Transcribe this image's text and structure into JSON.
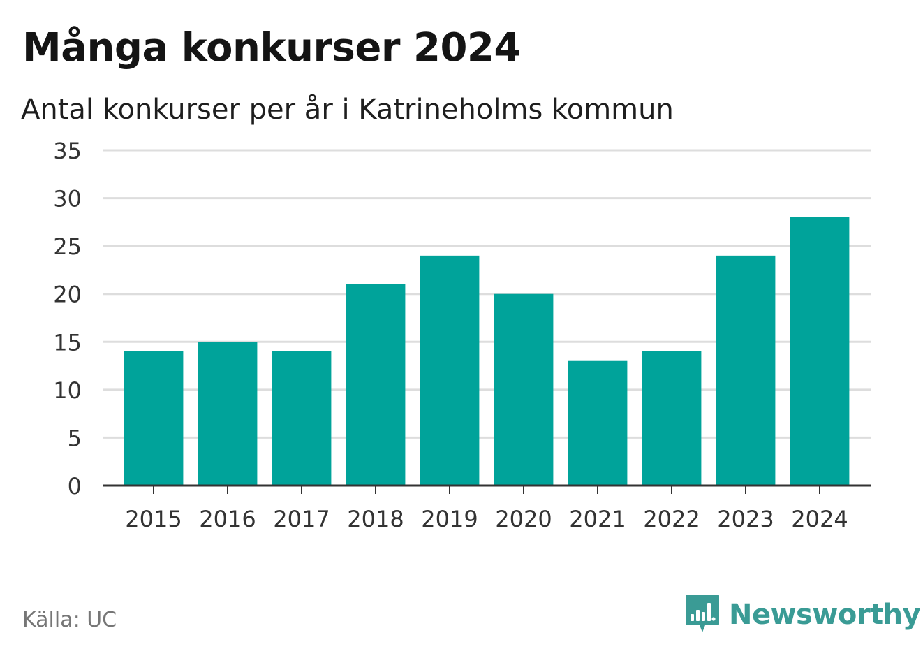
{
  "header": {
    "title": "Många konkurser 2024",
    "subtitle": "Antal konkurser per år i Katrineholms kommun"
  },
  "footer": {
    "source": "Källa: UC",
    "brand": "Newsworthy"
  },
  "colors": {
    "bar": "#00a39a",
    "grid": "#dddddd",
    "axis": "#333333",
    "brand": "#3a9b95"
  },
  "chart_data": {
    "type": "bar",
    "title": "Många konkurser 2024",
    "subtitle": "Antal konkurser per år i Katrineholms kommun",
    "categories": [
      "2015",
      "2016",
      "2017",
      "2018",
      "2019",
      "2020",
      "2021",
      "2022",
      "2023",
      "2024"
    ],
    "values": [
      14,
      15,
      14,
      21,
      24,
      20,
      13,
      14,
      24,
      28
    ],
    "ylim": [
      0,
      35
    ],
    "yticks": [
      0,
      5,
      10,
      15,
      20,
      25,
      30,
      35
    ],
    "grid": true,
    "legend": "none"
  }
}
